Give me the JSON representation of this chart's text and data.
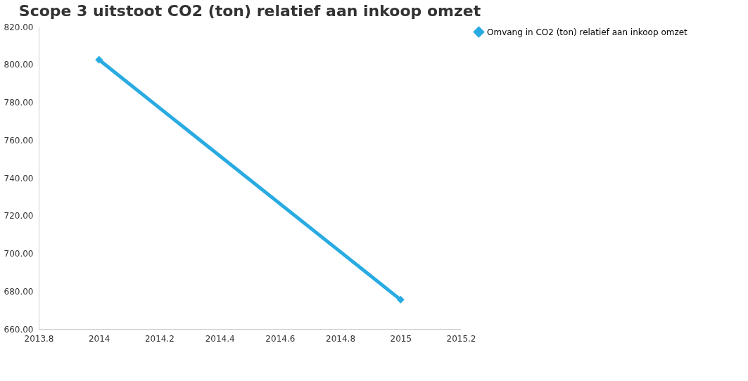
{
  "chart_data": {
    "type": "line",
    "title": "Scope 3 uitstoot CO2 (ton) relatief aan inkoop omzet",
    "x": [
      2014,
      2015
    ],
    "series": [
      {
        "name": "Omvang in CO2 (ton) relatief aan inkoop omzet",
        "color": "#29abe2",
        "values": [
          802.5,
          675.5
        ]
      }
    ],
    "xlim": [
      2013.8,
      2015.2
    ],
    "xticks": [
      2013.8,
      2014,
      2014.2,
      2014.4,
      2014.6,
      2014.8,
      2015,
      2015.2
    ],
    "ylim": [
      660,
      820
    ],
    "yticks": [
      {
        "value": 660,
        "label": "660.00"
      },
      {
        "value": 680,
        "label": "680.00"
      },
      {
        "value": 700,
        "label": "700.00"
      },
      {
        "value": 720,
        "label": "720.00"
      },
      {
        "value": 740,
        "label": "740.00"
      },
      {
        "value": 760,
        "label": "760.00"
      },
      {
        "value": 780,
        "label": "780.00"
      },
      {
        "value": 800,
        "label": "800.00"
      },
      {
        "value": 820,
        "label": "820.00"
      }
    ],
    "grid": false,
    "legend": "right",
    "marker": "diamond",
    "line_style": "solid"
  }
}
